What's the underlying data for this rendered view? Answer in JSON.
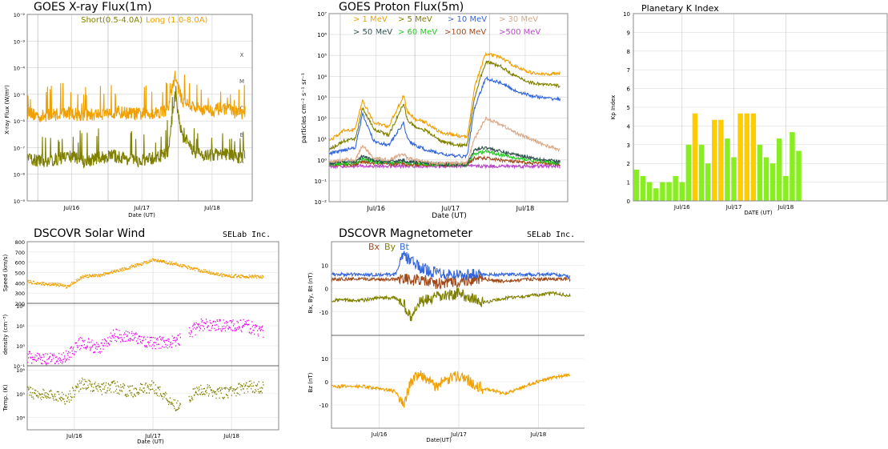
{
  "colors": {
    "short": "#808000",
    "long": "#f0a000",
    "p1": "#f0a000",
    "p5": "#808000",
    "p10": "#3366dd",
    "p30": "#d8a888",
    "p50": "#2f4f4f",
    "p60": "#22cc22",
    "p100": "#a04a1a",
    "p500": "#bb44cc",
    "kp_green": "#88ee22",
    "kp_yellow": "#ffcc00",
    "wind_speed": "#f0a000",
    "wind_density": "#ee00ee",
    "wind_temp": "#808000",
    "bx": "#a04a1a",
    "by": "#808000",
    "bt": "#3366dd",
    "bz": "#f0a000"
  },
  "xray": {
    "title": "GOES X-ray Flux(1m)",
    "legend_short": "Short(0.5-4.0A)",
    "legend_long": "Long (1.0-8.0A)",
    "ylabel": "X-ray Flux (W/m²)",
    "xlabel": "Date (UT)",
    "y_ticks": [
      "10⁻²",
      "10⁻³",
      "10⁻⁴",
      "10⁻⁵",
      "10⁻⁶",
      "10⁻⁷",
      "10⁻⁸",
      "10⁻⁹"
    ],
    "class_labels": [
      "X",
      "M",
      "C",
      "B",
      "A"
    ],
    "x_ticks": [
      "Jul/16",
      "Jul/17",
      "Jul/18"
    ]
  },
  "proton": {
    "title": "GOES Proton Flux(5m)",
    "legend": [
      {
        "label": "> 1 MeV",
        "color": "#f0a000"
      },
      {
        "label": "> 5 MeV",
        "color": "#808000"
      },
      {
        "label": "> 10 MeV",
        "color": "#3366dd"
      },
      {
        "label": "> 30 MeV",
        "color": "#d8a888"
      },
      {
        "label": "> 50 MeV",
        "color": "#2f4f4f"
      },
      {
        "label": "> 60 MeV",
        "color": "#22cc22"
      },
      {
        "label": ">100 MeV",
        "color": "#a04a1a"
      },
      {
        "label": ">500 MeV",
        "color": "#bb44cc"
      }
    ],
    "ylabel": "particles cm⁻² s⁻¹ sr⁻¹",
    "xlabel": "Date (UT)",
    "y_ticks": [
      "10⁷",
      "10⁶",
      "10⁵",
      "10⁴",
      "10³",
      "10²",
      "10¹",
      "10⁰",
      "10⁻¹",
      "10⁻²"
    ],
    "x_ticks": [
      "Jul/16",
      "Jul/17",
      "Jul/18"
    ]
  },
  "kp": {
    "title": "Planetary K Index",
    "ylabel": "Kp Index",
    "xlabel": "DATE (UT)",
    "y_ticks": [
      "10",
      "9",
      "8",
      "7",
      "6",
      "5",
      "4",
      "3",
      "2",
      "1",
      "0"
    ],
    "x_ticks": [
      "Jul/16",
      "Jul/17",
      "Jul/18"
    ]
  },
  "wind": {
    "title": "DSCOVR Solar Wind",
    "brand": "SELab Inc.",
    "speed_label": "Speed (km/s)",
    "density_label": "density (cm⁻³)",
    "temp_label": "Temp. (K)",
    "speed_ticks": [
      "800",
      "700",
      "600",
      "500",
      "400",
      "300",
      "200"
    ],
    "density_ticks": [
      "10²",
      "10¹",
      "10⁰",
      "10⁻¹"
    ],
    "temp_ticks": [
      "10⁶",
      "10⁵",
      "10⁴"
    ],
    "xlabel": "Date (UT)",
    "x_ticks": [
      "Jul/16",
      "Jul/17",
      "Jul/18"
    ]
  },
  "mag": {
    "title": "DSCOVR Magnetometer",
    "brand": "SELab Inc.",
    "legend_bx": "Bx",
    "legend_by": "By",
    "legend_bt": "Bt",
    "top_label": "Bx, By, Bt (nT)",
    "bottom_label": "Bz (nT)",
    "top_ticks": [
      "10",
      "0",
      "-10"
    ],
    "bottom_ticks": [
      "10",
      "0",
      "-10"
    ],
    "xlabel": "Date(UT)",
    "x_ticks": [
      "Jul/16",
      "Jul/17",
      "Jul/18"
    ]
  },
  "chart_data": [
    {
      "type": "line",
      "title": "GOES X-ray Flux(1m)",
      "xlabel": "Date (UT)",
      "ylabel": "X-ray Flux (W/m2)",
      "yscale": "log",
      "ylim": [
        1e-09,
        0.01
      ],
      "x_range_days": [
        0,
        3.2
      ],
      "x_tick_days": {
        "Jul/16": 0.63,
        "Jul/17": 1.63,
        "Jul/18": 2.63
      },
      "x": [
        0.0,
        0.2,
        0.4,
        0.6,
        0.8,
        1.0,
        1.2,
        1.4,
        1.6,
        1.8,
        2.0,
        2.1,
        2.2,
        2.4,
        2.6,
        2.8,
        3.0,
        3.1
      ],
      "series": [
        {
          "name": "Long (1.0-8.0A)",
          "values": [
            2e-06,
            1.5e-06,
            1.8e-06,
            2e-06,
            1.6e-06,
            1.8e-06,
            2.2e-06,
            2e-06,
            1.8e-06,
            2e-06,
            2.5e-06,
            5e-05,
            6e-06,
            3e-06,
            2.5e-06,
            3e-06,
            2e-06,
            2e-06
          ]
        },
        {
          "name": "Short(0.5-4.0A)",
          "values": [
            4e-08,
            3e-08,
            3.5e-08,
            5e-08,
            3e-08,
            4e-08,
            5e-08,
            4e-08,
            3e-08,
            4e-08,
            6e-08,
            1e-05,
            3e-07,
            6e-08,
            5e-08,
            6e-08,
            4e-08,
            5e-08
          ]
        }
      ]
    },
    {
      "type": "line",
      "title": "GOES Proton Flux(5m)",
      "xlabel": "Date (UT)",
      "ylabel": "particles cm-2 s-1 sr-1",
      "yscale": "log",
      "ylim": [
        0.01,
        10000000.0
      ],
      "x_range_days": [
        0,
        3.2
      ],
      "x_tick_days": {
        "Jul/16": 0.63,
        "Jul/17": 1.63,
        "Jul/18": 2.63
      },
      "x": [
        0.0,
        0.2,
        0.35,
        0.45,
        0.6,
        0.8,
        1.0,
        1.05,
        1.15,
        1.3,
        1.5,
        1.7,
        1.85,
        1.95,
        2.1,
        2.3,
        2.5,
        2.7,
        2.9,
        3.1
      ],
      "series": [
        {
          "name": "> 1 MeV",
          "values": [
            8,
            25,
            30,
            700,
            60,
            40,
            1200,
            200,
            90,
            60,
            20,
            15,
            12,
            3000,
            120000,
            80000,
            30000,
            15000,
            12000,
            15000
          ]
        },
        {
          "name": "> 5 MeV",
          "values": [
            3,
            8,
            10,
            300,
            30,
            15,
            500,
            80,
            40,
            25,
            8,
            5,
            5,
            1000,
            50000,
            30000,
            10000,
            5000,
            4000,
            3500
          ]
        },
        {
          "name": "> 10 MeV",
          "values": [
            2,
            3,
            4,
            150,
            8,
            5,
            60,
            10,
            5,
            3,
            2,
            1.5,
            1.5,
            300,
            8000,
            5000,
            2000,
            1200,
            900,
            800
          ]
        },
        {
          "name": "> 30 MeV",
          "values": [
            0.8,
            1,
            1,
            5,
            1.2,
            1,
            2,
            1.2,
            1,
            0.8,
            0.7,
            0.7,
            0.7,
            10,
            100,
            50,
            20,
            10,
            5,
            3
          ]
        },
        {
          "name": "> 50 MeV",
          "values": [
            0.7,
            0.8,
            0.8,
            1.5,
            0.9,
            0.8,
            1,
            0.8,
            0.8,
            0.7,
            0.6,
            0.6,
            0.6,
            3,
            4,
            2.5,
            1.8,
            1.3,
            1,
            0.8
          ]
        },
        {
          "name": "> 60 MeV",
          "values": [
            0.6,
            0.7,
            0.7,
            1.2,
            0.8,
            0.7,
            0.9,
            0.7,
            0.7,
            0.6,
            0.6,
            0.6,
            0.6,
            2,
            2.5,
            1.8,
            1.2,
            1,
            0.8,
            0.7
          ]
        },
        {
          "name": ">100 MeV",
          "values": [
            0.6,
            0.6,
            0.6,
            0.8,
            0.7,
            0.6,
            0.7,
            0.6,
            0.6,
            0.6,
            0.6,
            0.6,
            0.6,
            1.2,
            1.2,
            1,
            0.8,
            0.7,
            0.7,
            0.6
          ]
        },
        {
          "name": ">500 MeV",
          "values": [
            0.5,
            0.5,
            0.5,
            0.5,
            0.5,
            0.5,
            0.5,
            0.5,
            0.5,
            0.5,
            0.5,
            0.5,
            0.5,
            0.5,
            0.5,
            0.5,
            0.5,
            0.5,
            0.5,
            0.5
          ]
        }
      ]
    },
    {
      "type": "bar",
      "title": "Planetary K Index",
      "xlabel": "DATE (UT)",
      "ylabel": "Kp Index",
      "ylim": [
        0,
        10
      ],
      "x_tick_bar_index": {
        "Jul/16": 7,
        "Jul/17": 15,
        "Jul/18": 23
      },
      "values": [
        1.67,
        1.33,
        1,
        0.67,
        1,
        1,
        1.33,
        1,
        3,
        4.67,
        3,
        2,
        4.33,
        4.33,
        3.33,
        2.33,
        4.67,
        4.67,
        4.67,
        3,
        2.33,
        2,
        3.33,
        1.33,
        3.67,
        2.67
      ],
      "threshold_yellow": 4
    },
    {
      "type": "scatter",
      "title": "DSCOVR Solar Wind",
      "xlabel": "Date (UT)",
      "x_range_days": [
        0,
        3.2
      ],
      "x_tick_days": {
        "Jul/16": 0.6,
        "Jul/17": 1.6,
        "Jul/18": 2.6
      },
      "x": [
        0.0,
        0.2,
        0.4,
        0.5,
        0.7,
        0.9,
        1.1,
        1.3,
        1.6,
        1.9,
        2.2,
        2.5,
        2.8,
        3.0
      ],
      "series": [
        {
          "name": "Speed (km/s)",
          "ylim": [
            200,
            800
          ],
          "values": [
            410,
            390,
            380,
            360,
            460,
            470,
            510,
            550,
            620,
            580,
            520,
            470,
            460,
            460
          ]
        },
        {
          "name": "density (cm-3)",
          "yscale": "log",
          "ylim": [
            0.1,
            100
          ],
          "values": [
            0.25,
            0.2,
            0.2,
            0.3,
            1.5,
            0.6,
            3,
            2.5,
            1.2,
            1.5,
            9,
            9,
            8,
            4
          ]
        },
        {
          "name": "Temp. (K)",
          "yscale": "log",
          "ylim": [
            3000,
            1500000
          ],
          "values": [
            120000,
            90000,
            80000,
            60000,
            300000,
            150000,
            200000,
            120000,
            200000,
            30000,
            150000,
            100000,
            200000,
            180000
          ]
        }
      ]
    },
    {
      "type": "line",
      "title": "DSCOVR Magnetometer",
      "xlabel": "Date(UT)",
      "x_range_days": [
        0,
        3.2
      ],
      "x_tick_days": {
        "Jul/16": 0.6,
        "Jul/17": 1.6,
        "Jul/18": 2.6
      },
      "x": [
        0.0,
        0.2,
        0.4,
        0.6,
        0.8,
        0.9,
        1.0,
        1.1,
        1.3,
        1.6,
        1.9,
        2.2,
        2.5,
        2.8,
        3.0
      ],
      "series": [
        {
          "name": "Bx",
          "panel": "top",
          "ylim": [
            -20,
            20
          ],
          "values": [
            4,
            4,
            4,
            4,
            4,
            5,
            3,
            4,
            2,
            3,
            4,
            3,
            4,
            4,
            4
          ]
        },
        {
          "name": "By",
          "panel": "top",
          "ylim": [
            -20,
            20
          ],
          "values": [
            -5,
            -5,
            -5,
            -4,
            -4,
            -6,
            -13,
            -6,
            -4,
            -2,
            -6,
            -4,
            -3,
            -2,
            -3
          ]
        },
        {
          "name": "Bt",
          "panel": "top",
          "ylim": [
            -20,
            20
          ],
          "values": [
            6,
            6,
            6,
            6,
            6,
            14,
            12,
            9,
            7,
            6,
            6,
            6,
            6,
            6,
            5
          ]
        },
        {
          "name": "Bz",
          "panel": "bottom",
          "ylim": [
            -20,
            20
          ],
          "values": [
            -2,
            -2,
            -2,
            -3,
            -4,
            -10,
            0,
            4,
            -2,
            3,
            -3,
            -5,
            -1,
            2,
            3
          ]
        }
      ]
    }
  ]
}
